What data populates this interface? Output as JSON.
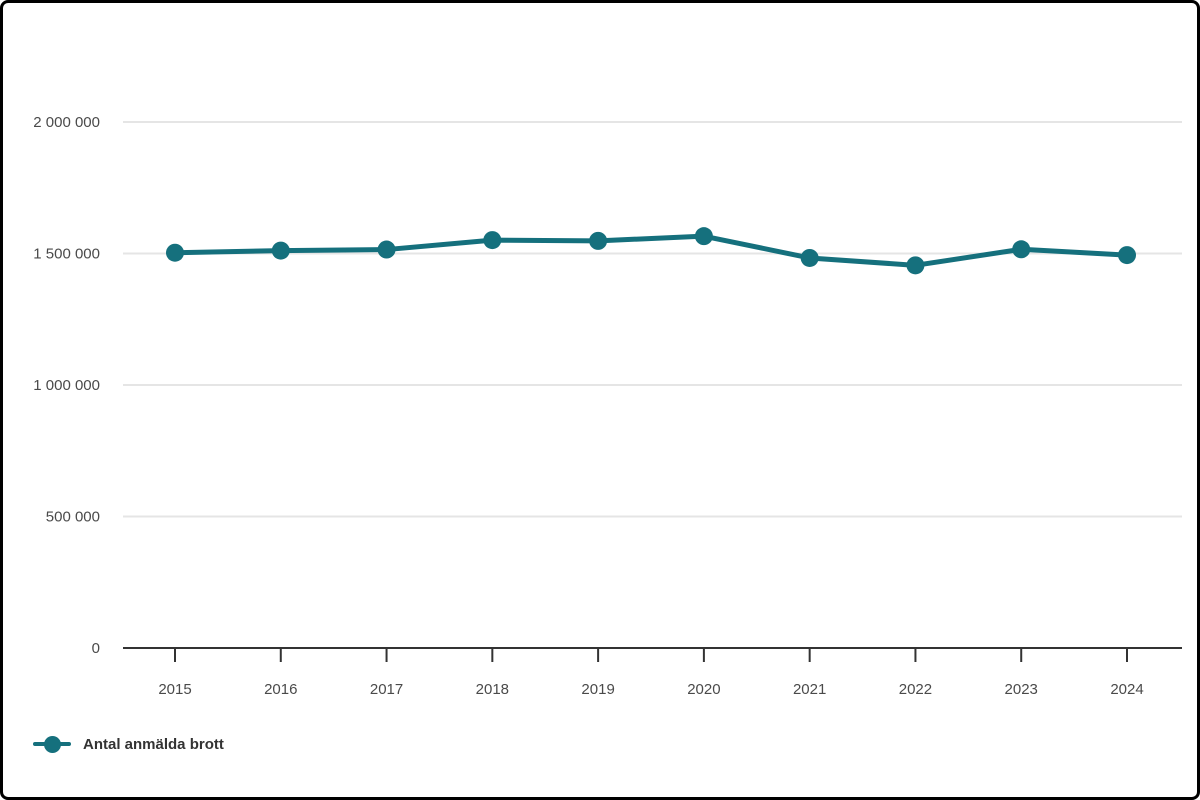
{
  "chart_data": {
    "type": "line",
    "title": "",
    "categories": [
      "2015",
      "2016",
      "2017",
      "2018",
      "2019",
      "2020",
      "2021",
      "2022",
      "2023",
      "2024"
    ],
    "series": [
      {
        "name": "Antal anmälda brott",
        "color": "#15707d",
        "values": [
          1503000,
          1511000,
          1515000,
          1551000,
          1548000,
          1566000,
          1483000,
          1455000,
          1516000,
          1494000
        ]
      }
    ],
    "ylim": [
      0,
      2000000
    ],
    "yticks": [
      0,
      500000,
      1000000,
      1500000,
      2000000
    ],
    "ytick_labels": [
      "0",
      "500 000",
      "1 000 000",
      "1 500 000",
      "2 000 000"
    ],
    "grid": "horizontal-only",
    "legend_position": "bottom-left",
    "colors": {
      "line": "#15707d",
      "marker": "#15707d",
      "axis": "#333333",
      "gridline": "#e5e5e5",
      "tick_label": "#4a4a4a",
      "legend_text": "#333333",
      "background": "#ffffff",
      "frame_border": "#000000"
    }
  },
  "legend": {
    "label": "Antal anmälda brott"
  }
}
